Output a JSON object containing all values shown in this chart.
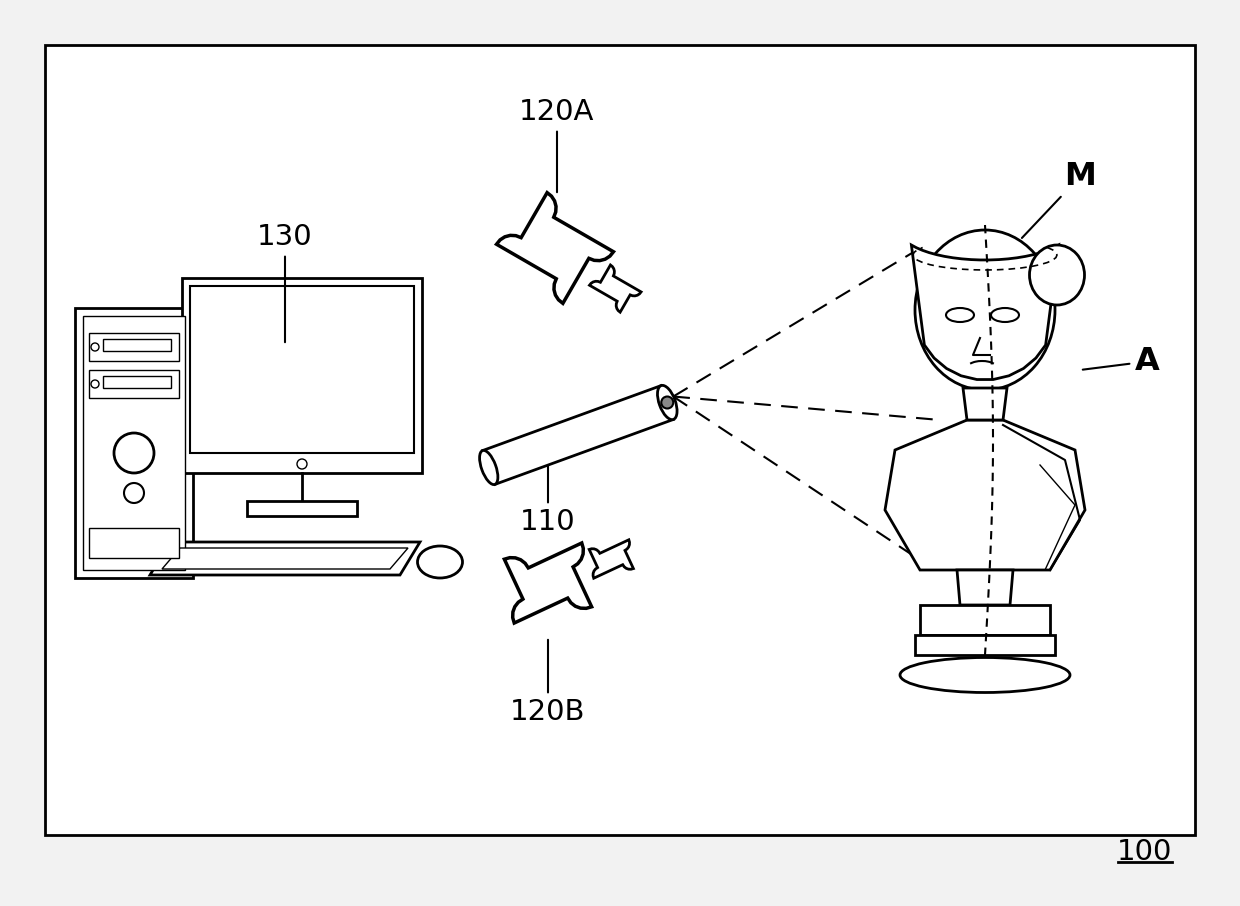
{
  "background_color": "#f2f2f2",
  "border_color": "#000000",
  "line_color": "#000000",
  "label_100": "100",
  "label_110": "110",
  "label_120A": "120A",
  "label_120B": "120B",
  "label_130": "130",
  "label_M": "M",
  "label_A": "A",
  "fig_width": 12.4,
  "fig_height": 9.06,
  "dpi": 100
}
